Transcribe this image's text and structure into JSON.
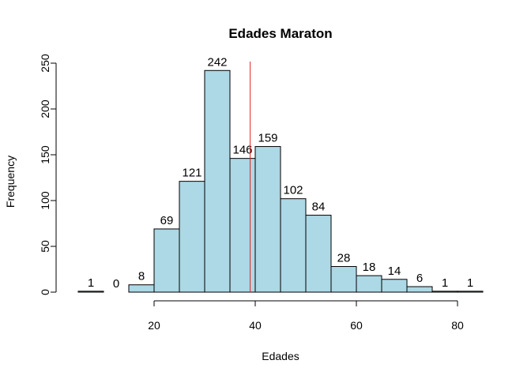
{
  "chart_data": {
    "type": "bar",
    "title": "Edades Maraton",
    "xlabel": "Edades",
    "ylabel": "Frequency",
    "bin_edges": [
      5,
      10,
      15,
      20,
      25,
      30,
      35,
      40,
      45,
      50,
      55,
      60,
      65,
      70,
      75,
      80,
      85
    ],
    "values": [
      1,
      0,
      8,
      69,
      121,
      242,
      146,
      159,
      102,
      84,
      28,
      18,
      14,
      6,
      1,
      1
    ],
    "value_labels": [
      "1",
      "0",
      "8",
      "69",
      "121",
      "242",
      "146",
      "159",
      "102",
      "84",
      "28",
      "18",
      "14",
      "6",
      "1",
      "1"
    ],
    "x_ticks": [
      20,
      40,
      60,
      80
    ],
    "x_tick_labels": [
      "20",
      "40",
      "60",
      "80"
    ],
    "y_ticks": [
      0,
      50,
      100,
      150,
      200,
      250
    ],
    "y_tick_labels": [
      "0",
      "50",
      "100",
      "150",
      "200",
      "250"
    ],
    "xlim": [
      5,
      85
    ],
    "ylim": [
      0,
      250
    ],
    "bar_color": "#add8e6",
    "bar_edge_color": "#000000",
    "reference_line": {
      "x": 39,
      "color": "#e32222"
    },
    "grid": false
  }
}
